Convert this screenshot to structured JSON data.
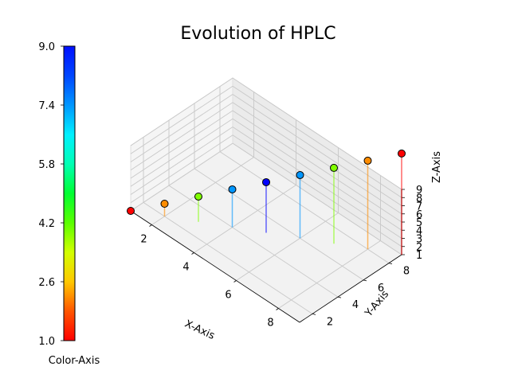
{
  "chart_data": {
    "type": "scatter",
    "title": "Evolution of HPLC",
    "xlabel": "X-Axis",
    "ylabel": "Y-Axis",
    "zlabel": "Z-Axis",
    "colorbar_label": "Color-Axis",
    "xlim": [
      1,
      9
    ],
    "ylim": [
      1,
      9
    ],
    "zlim": [
      1,
      9
    ],
    "x_ticks": [
      "2",
      "4",
      "6",
      "8"
    ],
    "y_ticks": [
      "2",
      "4",
      "6",
      "8"
    ],
    "z_ticks": [
      "1",
      "2",
      "3",
      "4",
      "5",
      "6",
      "7",
      "8",
      "9"
    ],
    "colorbar_ticks": [
      "1.0",
      "2.6",
      "4.2",
      "5.8",
      "7.4",
      "9.0"
    ],
    "colorbar_range": [
      1.0,
      9.0
    ],
    "colormap": "gist_rainbow",
    "grid": true,
    "points": [
      {
        "x": 1,
        "y": 1,
        "z": 1,
        "color": "#ff0000"
      },
      {
        "x": 2,
        "y": 2,
        "z": 2,
        "color": "#ff8c00"
      },
      {
        "x": 3,
        "y": 3,
        "z": 3,
        "color": "#80ff00"
      },
      {
        "x": 4,
        "y": 4,
        "z": 4,
        "color": "#0096ff"
      },
      {
        "x": 5,
        "y": 5,
        "z": 5,
        "color": "#0000ff"
      },
      {
        "x": 6,
        "y": 6,
        "z": 6,
        "color": "#0096ff"
      },
      {
        "x": 7,
        "y": 7,
        "z": 7,
        "color": "#80ff00"
      },
      {
        "x": 8,
        "y": 8,
        "z": 8,
        "color": "#ff8c00"
      },
      {
        "x": 9,
        "y": 9,
        "z": 9,
        "color": "#ff0000"
      }
    ]
  }
}
